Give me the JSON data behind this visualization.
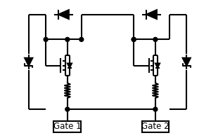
{
  "bg_color": "#ffffff",
  "line_color": "#000000",
  "lw": 1.5,
  "gate1_label": "Gate 1",
  "gate2_label": "Gate 2",
  "fig_width": 3.0,
  "fig_height": 2.0,
  "xlim": [
    0,
    10
  ],
  "ylim": [
    0,
    6.67
  ]
}
